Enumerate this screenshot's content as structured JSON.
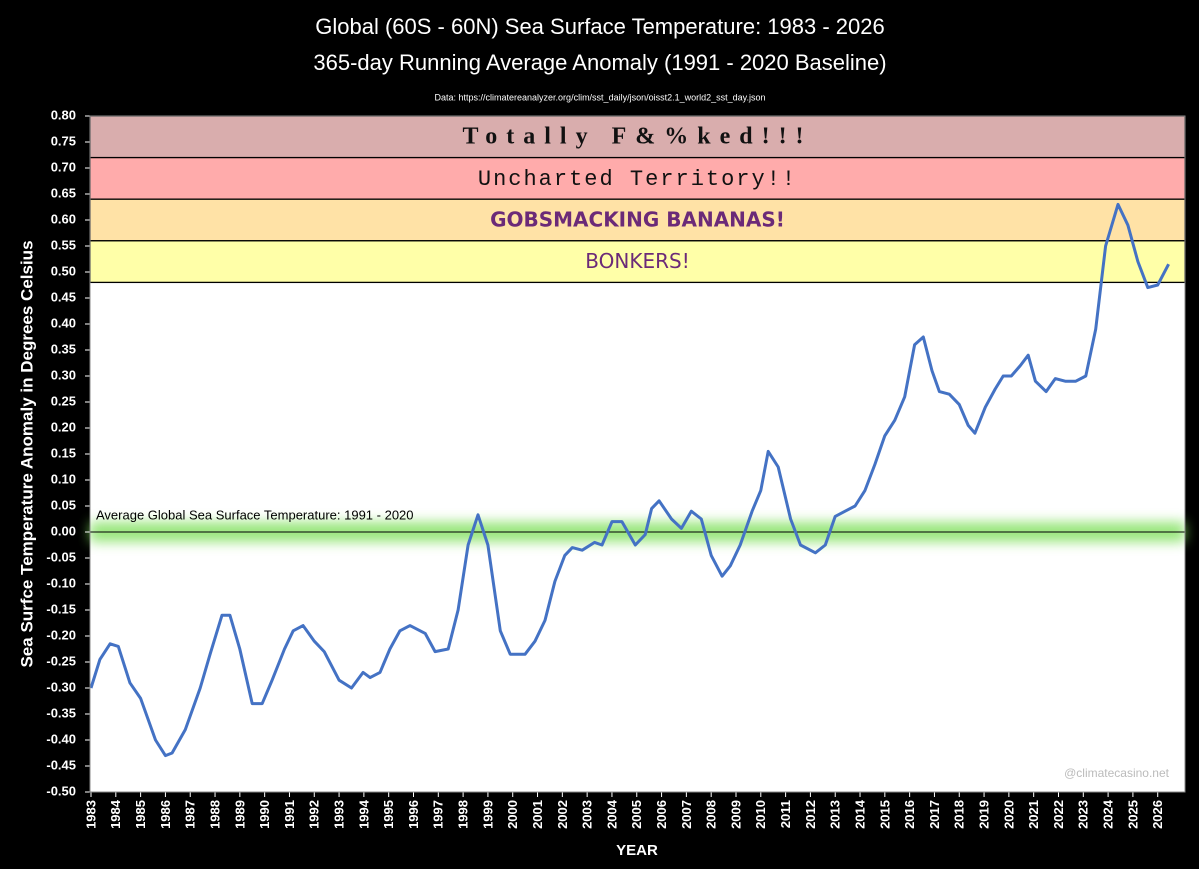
{
  "chart_data": {
    "type": "line",
    "title": "Global (60S - 60N) Sea Surface Temperature: 1983 - 2026",
    "subtitle": "365-day Running Average Anomaly (1991 - 2020 Baseline)",
    "source": "Data: https://climatereanalyzer.org/clim/sst_daily/json/oisst2.1_world2_sst_day.json",
    "y_label": "Sea Surfce Temperature Anomaly in Degrees Celsius",
    "x_label": "YEAR",
    "annotation": "Average Global Sea Surface Temperature: 1991 - 2020",
    "watermark": "@climatecasino.net",
    "color": "#4472c4",
    "baseline": 0,
    "bands": [
      {
        "label": "Totally F&%ked!!!",
        "ymin": 0.72,
        "ymax": 0.8,
        "color": "#d9adad"
      },
      {
        "label": "Uncharted Territory!!",
        "ymin": 0.64,
        "ymax": 0.72,
        "color": "#ffabab"
      },
      {
        "label": "GOBSMACKING BANANAS!",
        "ymin": 0.56,
        "ymax": 0.64,
        "color": "#ffe2a6"
      },
      {
        "label": "BONKERS!",
        "ymin": 0.48,
        "ymax": 0.56,
        "color": "#ffffa8"
      }
    ],
    "x": [
      1983.0,
      1983.36,
      1983.77,
      1984.1,
      1984.57,
      1985.0,
      1985.6,
      1986.0,
      1986.27,
      1986.8,
      1987.4,
      1987.8,
      1988.28,
      1988.6,
      1989.0,
      1989.5,
      1989.9,
      1990.3,
      1990.8,
      1991.15,
      1991.55,
      1992.0,
      1992.4,
      1993.0,
      1993.5,
      1993.97,
      1994.25,
      1994.65,
      1995.05,
      1995.45,
      1995.86,
      1996.47,
      1996.87,
      1997.4,
      1997.8,
      1998.2,
      1998.6,
      1999.0,
      1999.5,
      1999.9,
      2000.5,
      2000.9,
      2001.3,
      2001.7,
      2002.1,
      2002.4,
      2002.8,
      2003.3,
      2003.6,
      2004.0,
      2004.4,
      2004.94,
      2005.34,
      2005.6,
      2005.9,
      2006.4,
      2006.8,
      2007.2,
      2007.6,
      2008.0,
      2008.44,
      2008.77,
      2009.17,
      2009.65,
      2010.0,
      2010.3,
      2010.7,
      2011.2,
      2011.6,
      2012.2,
      2012.6,
      2013.0,
      2013.4,
      2013.8,
      2014.2,
      2014.6,
      2015.0,
      2015.4,
      2015.8,
      2016.2,
      2016.55,
      2016.9,
      2017.2,
      2017.6,
      2018.0,
      2018.36,
      2018.63,
      2019.05,
      2019.45,
      2019.77,
      2020.1,
      2020.46,
      2020.78,
      2021.07,
      2021.5,
      2021.87,
      2022.27,
      2022.7,
      2023.1,
      2023.5,
      2023.9,
      2024.4,
      2024.8,
      2025.2,
      2025.6,
      2026.0,
      2026.44
    ],
    "values": [
      -0.3,
      -0.245,
      -0.215,
      -0.22,
      -0.29,
      -0.32,
      -0.4,
      -0.43,
      -0.425,
      -0.38,
      -0.3,
      -0.235,
      -0.16,
      -0.16,
      -0.225,
      -0.33,
      -0.33,
      -0.285,
      -0.225,
      -0.19,
      -0.18,
      -0.21,
      -0.23,
      -0.285,
      -0.3,
      -0.27,
      -0.28,
      -0.27,
      -0.225,
      -0.19,
      -0.18,
      -0.195,
      -0.23,
      -0.225,
      -0.15,
      -0.025,
      0.033,
      -0.025,
      -0.19,
      -0.235,
      -0.235,
      -0.21,
      -0.17,
      -0.095,
      -0.045,
      -0.03,
      -0.035,
      -0.02,
      -0.025,
      0.02,
      0.02,
      -0.025,
      -0.005,
      0.045,
      0.06,
      0.025,
      0.007,
      0.04,
      0.025,
      -0.045,
      -0.085,
      -0.065,
      -0.025,
      0.04,
      0.08,
      0.155,
      0.125,
      0.025,
      -0.025,
      -0.04,
      -0.025,
      0.03,
      0.04,
      0.05,
      0.08,
      0.13,
      0.185,
      0.215,
      0.26,
      0.36,
      0.375,
      0.31,
      0.27,
      0.265,
      0.245,
      0.205,
      0.19,
      0.24,
      0.275,
      0.3,
      0.3,
      0.32,
      0.34,
      0.29,
      0.27,
      0.295,
      0.29,
      0.29,
      0.3,
      0.39,
      0.55,
      0.63,
      0.59,
      0.52,
      0.47,
      0.475,
      0.515
    ],
    "xlim": [
      1983,
      2027.1
    ],
    "ylim": [
      -0.5,
      0.8
    ],
    "xticks": [
      1983,
      1984,
      1985,
      1986,
      1987,
      1988,
      1989,
      1990,
      1991,
      1992,
      1993,
      1994,
      1995,
      1996,
      1997,
      1998,
      1999,
      2000,
      2001,
      2002,
      2003,
      2004,
      2005,
      2006,
      2007,
      2008,
      2009,
      2010,
      2011,
      2012,
      2013,
      2014,
      2015,
      2016,
      2017,
      2018,
      2019,
      2020,
      2021,
      2022,
      2023,
      2024,
      2025,
      2026
    ],
    "yticks": [
      {
        "value": -0.5,
        "label": "-0.50"
      },
      {
        "value": -0.45,
        "label": "-0.45"
      },
      {
        "value": -0.4,
        "label": "-0.40"
      },
      {
        "value": -0.35,
        "label": "-0.35"
      },
      {
        "value": -0.3,
        "label": "-0.30"
      },
      {
        "value": -0.25,
        "label": "-0.25"
      },
      {
        "value": -0.2,
        "label": "-0.20"
      },
      {
        "value": -0.15,
        "label": "-0.15"
      },
      {
        "value": -0.1,
        "label": "-0.10"
      },
      {
        "value": -0.05,
        "label": "-0.05"
      },
      {
        "value": 0,
        "label": "0.00"
      },
      {
        "value": 0.05,
        "label": "0.05"
      },
      {
        "value": 0.1,
        "label": "0.10"
      },
      {
        "value": 0.15,
        "label": "0.15"
      },
      {
        "value": 0.2,
        "label": "0.20"
      },
      {
        "value": 0.25,
        "label": "0.25"
      },
      {
        "value": 0.3,
        "label": "0.30"
      },
      {
        "value": 0.35,
        "label": "0.35"
      },
      {
        "value": 0.4,
        "label": "0.40"
      },
      {
        "value": 0.45,
        "label": "0.45"
      },
      {
        "value": 0.5,
        "label": "0.50"
      },
      {
        "value": 0.55,
        "label": "0.55"
      },
      {
        "value": 0.6,
        "label": "0.60"
      },
      {
        "value": 0.65,
        "label": "0.65"
      },
      {
        "value": 0.7,
        "label": "0.70"
      },
      {
        "value": 0.75,
        "label": "0.75"
      },
      {
        "value": 0.8,
        "label": "0.80"
      }
    ],
    "grid": false
  }
}
